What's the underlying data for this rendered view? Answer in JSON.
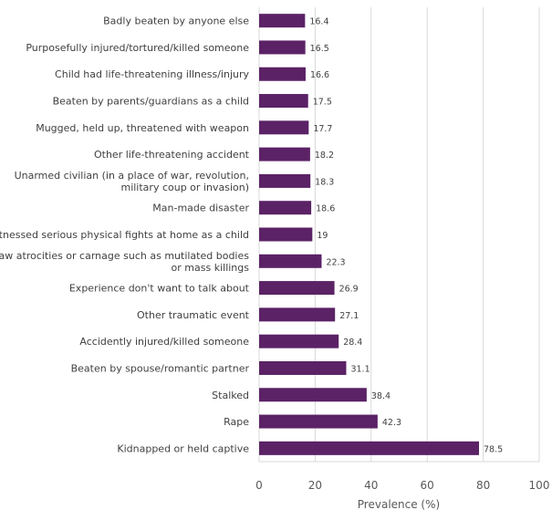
{
  "chart_data": {
    "type": "bar",
    "orientation": "horizontal",
    "title": "",
    "xlabel": "Prevalence (%)",
    "ylabel": "",
    "xlim": [
      0,
      100
    ],
    "xticks": [
      "0",
      "20",
      "40",
      "60",
      "80",
      "100"
    ],
    "grid": "vertical",
    "legend": "none",
    "bar_color": "#5b2266",
    "categories": [
      [
        "Badly beaten by anyone else"
      ],
      [
        "Purposefully injured/tortured/killed someone"
      ],
      [
        "Child had life-threatening illness/injury"
      ],
      [
        "Beaten by parents/guardians as a child"
      ],
      [
        "Mugged, held up, threatened with weapon"
      ],
      [
        "Other life-threatening accident"
      ],
      [
        "Unarmed civilian (in a place of war, revolution,",
        "military coup or invasion)"
      ],
      [
        "Man-made disaster"
      ],
      [
        "Witnessed serious physical fights at home as a child"
      ],
      [
        "Saw atrocities or carnage such as mutilated bodies",
        "or mass killings"
      ],
      [
        "Experience don't want to talk about"
      ],
      [
        "Other traumatic event"
      ],
      [
        "Accidently injured/killed someone"
      ],
      [
        "Beaten by spouse/romantic partner"
      ],
      [
        "Stalked"
      ],
      [
        "Rape"
      ],
      [
        "Kidnapped or held captive"
      ]
    ],
    "values": [
      16.4,
      16.5,
      16.6,
      17.5,
      17.7,
      18.2,
      18.3,
      18.6,
      19,
      22.3,
      26.9,
      27.1,
      28.4,
      31.1,
      38.4,
      42.3,
      78.5
    ],
    "value_labels": [
      "16.4",
      "16.5",
      "16.6",
      "17.5",
      "17.7",
      "18.2",
      "18.3",
      "18.6",
      "19",
      "22.3",
      "26.9",
      "27.1",
      "28.4",
      "31.1",
      "38.4",
      "42.3",
      "78.5"
    ]
  }
}
